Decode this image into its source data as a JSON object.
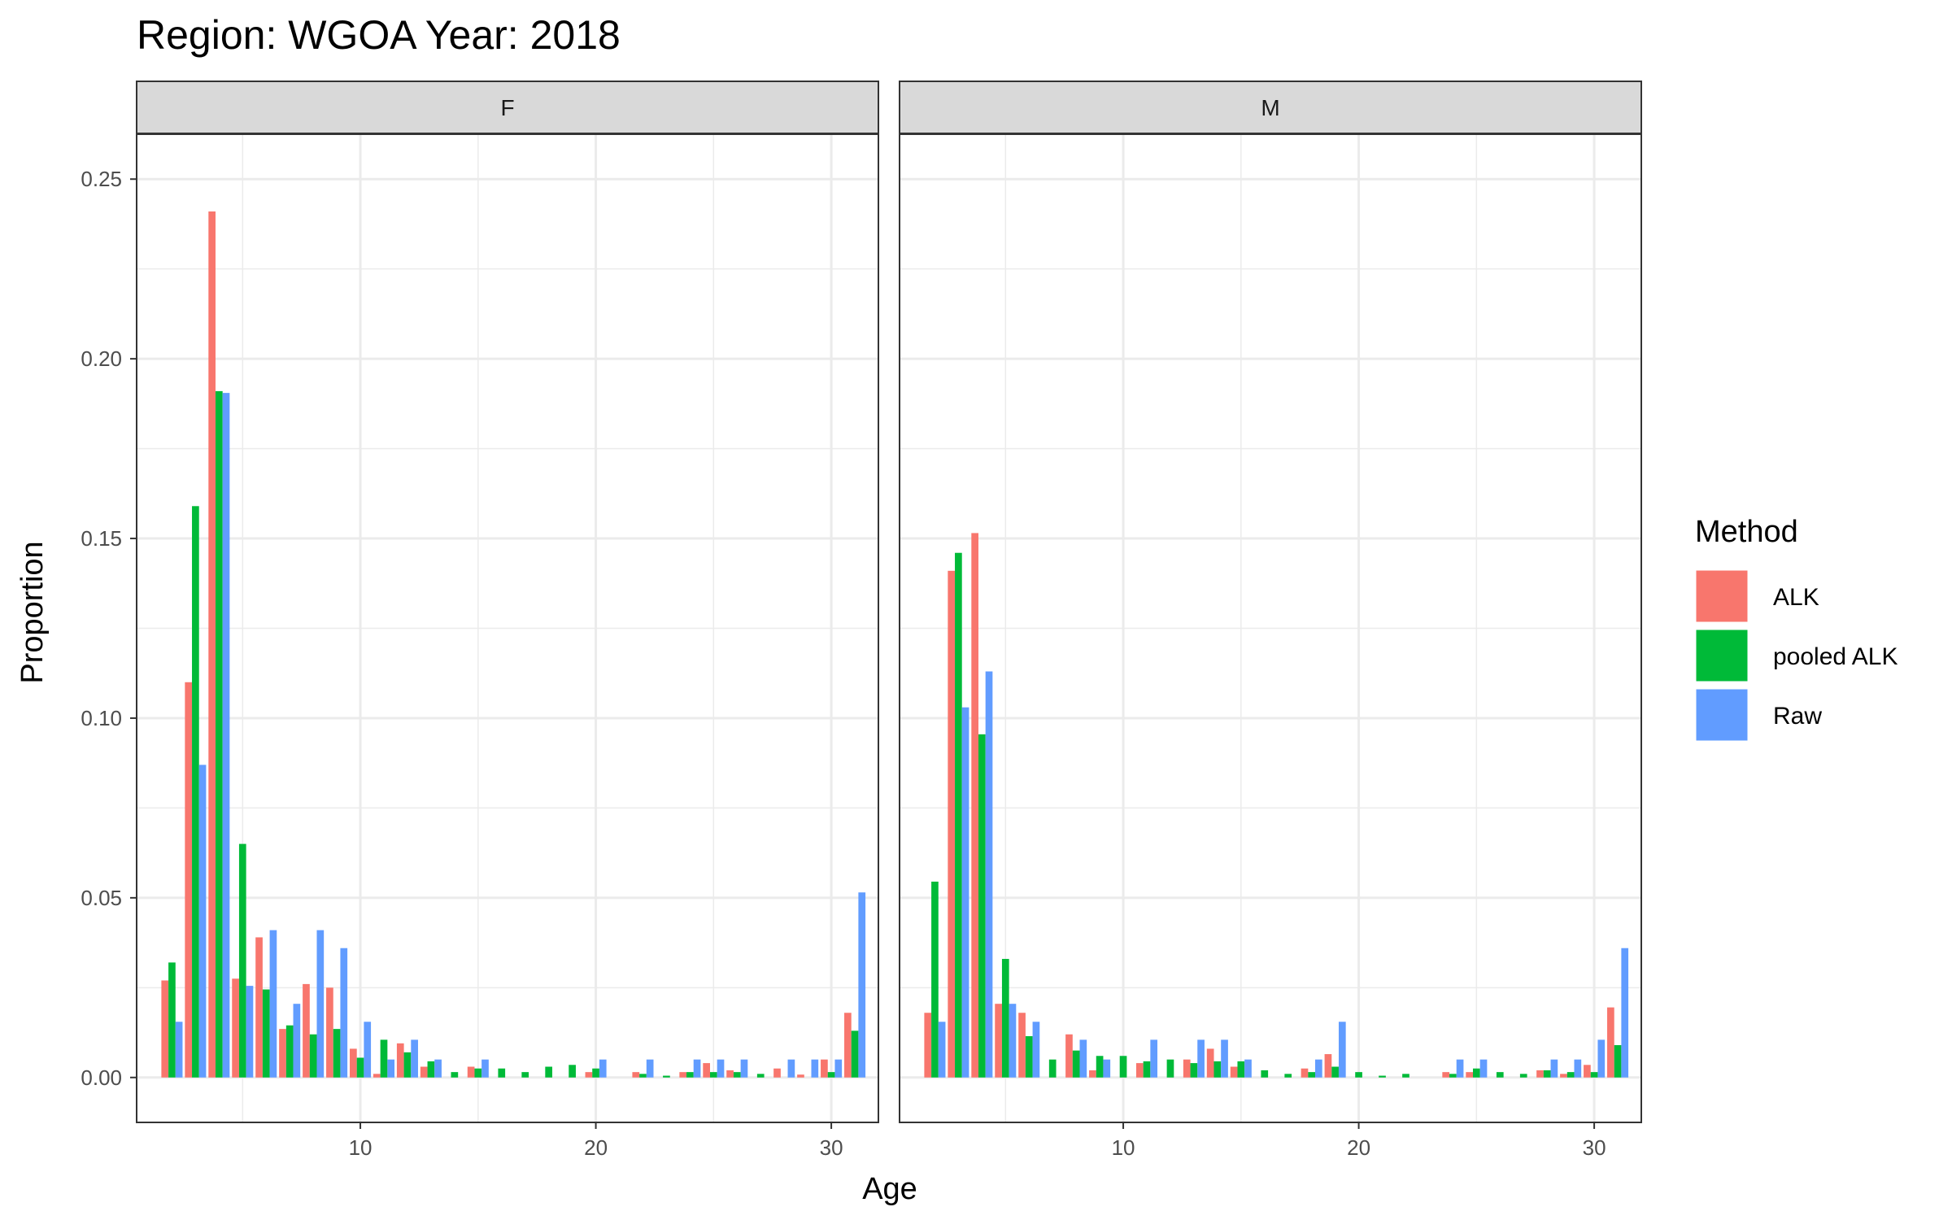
{
  "chart_data": {
    "type": "bar",
    "title": "Region: WGOA Year: 2018",
    "xlabel": "Age",
    "ylabel": "Proportion",
    "xlim": [
      0.5,
      32
    ],
    "ylim": [
      -0.0125,
      0.2625
    ],
    "x_ticks": [
      10,
      20,
      30
    ],
    "y_ticks": [
      0,
      0.05,
      0.1,
      0.15,
      0.2,
      0.25
    ],
    "y_tick_labels": [
      "0.00",
      "0.05",
      "0.10",
      "0.15",
      "0.20",
      "0.25"
    ],
    "grid": true,
    "legend": {
      "title": "Method",
      "position": "right",
      "entries": [
        {
          "label": "ALK",
          "color": "#F8766D"
        },
        {
          "label": "pooled ALK",
          "color": "#00BA38"
        },
        {
          "label": "Raw",
          "color": "#619CFF"
        }
      ]
    },
    "facets": [
      {
        "label": "F",
        "series": {
          "ALK": [
            [
              2,
              0.027
            ],
            [
              3,
              0.11
            ],
            [
              4,
              0.241
            ],
            [
              5,
              0.0275
            ],
            [
              6,
              0.039
            ],
            [
              7,
              0.0135
            ],
            [
              8,
              0.026
            ],
            [
              9,
              0.025
            ],
            [
              10,
              0.008
            ],
            [
              11,
              0.001
            ],
            [
              12,
              0.0095
            ],
            [
              13,
              0.003
            ],
            [
              15,
              0.003
            ],
            [
              20,
              0.0015
            ],
            [
              22,
              0.0015
            ],
            [
              24,
              0.0015
            ],
            [
              25,
              0.004
            ],
            [
              26,
              0.002
            ],
            [
              28,
              0.0025
            ],
            [
              29,
              0.0008
            ],
            [
              30,
              0.005
            ],
            [
              31,
              0.018
            ]
          ],
          "pooled ALK": [
            [
              2,
              0.032
            ],
            [
              3,
              0.159
            ],
            [
              4,
              0.191
            ],
            [
              5,
              0.065
            ],
            [
              6,
              0.0245
            ],
            [
              7,
              0.0145
            ],
            [
              8,
              0.012
            ],
            [
              9,
              0.0135
            ],
            [
              10,
              0.0055
            ],
            [
              11,
              0.0105
            ],
            [
              12,
              0.007
            ],
            [
              13,
              0.0045
            ],
            [
              14,
              0.0015
            ],
            [
              15,
              0.0025
            ],
            [
              16,
              0.0025
            ],
            [
              17,
              0.0015
            ],
            [
              18,
              0.003
            ],
            [
              19,
              0.0035
            ],
            [
              20,
              0.0025
            ],
            [
              22,
              0.001
            ],
            [
              23,
              0.0005
            ],
            [
              24,
              0.0015
            ],
            [
              25,
              0.0015
            ],
            [
              26,
              0.0015
            ],
            [
              27,
              0.001
            ],
            [
              30,
              0.0015
            ],
            [
              31,
              0.013
            ]
          ],
          "Raw": [
            [
              2,
              0.0155
            ],
            [
              3,
              0.087
            ],
            [
              4,
              0.1905
            ],
            [
              5,
              0.0255
            ],
            [
              6,
              0.041
            ],
            [
              7,
              0.0205
            ],
            [
              8,
              0.041
            ],
            [
              9,
              0.036
            ],
            [
              10,
              0.0155
            ],
            [
              11,
              0.005
            ],
            [
              12,
              0.0105
            ],
            [
              13,
              0.005
            ],
            [
              15,
              0.005
            ],
            [
              20,
              0.005
            ],
            [
              22,
              0.005
            ],
            [
              24,
              0.005
            ],
            [
              25,
              0.005
            ],
            [
              26,
              0.005
            ],
            [
              28,
              0.005
            ],
            [
              29,
              0.005
            ],
            [
              30,
              0.005
            ],
            [
              31,
              0.0515
            ]
          ]
        }
      },
      {
        "label": "M",
        "series": {
          "ALK": [
            [
              2,
              0.018
            ],
            [
              3,
              0.141
            ],
            [
              4,
              0.1515
            ],
            [
              5,
              0.0205
            ],
            [
              6,
              0.018
            ],
            [
              8,
              0.012
            ],
            [
              9,
              0.002
            ],
            [
              11,
              0.004
            ],
            [
              13,
              0.005
            ],
            [
              14,
              0.008
            ],
            [
              15,
              0.003
            ],
            [
              18,
              0.0025
            ],
            [
              19,
              0.0065
            ],
            [
              24,
              0.0015
            ],
            [
              25,
              0.0015
            ],
            [
              28,
              0.002
            ],
            [
              29,
              0.001
            ],
            [
              30,
              0.0035
            ],
            [
              31,
              0.0195
            ]
          ],
          "pooled ALK": [
            [
              2,
              0.0545
            ],
            [
              3,
              0.146
            ],
            [
              4,
              0.0955
            ],
            [
              5,
              0.033
            ],
            [
              6,
              0.0115
            ],
            [
              7,
              0.005
            ],
            [
              8,
              0.0075
            ],
            [
              9,
              0.006
            ],
            [
              10,
              0.006
            ],
            [
              11,
              0.0045
            ],
            [
              12,
              0.005
            ],
            [
              13,
              0.004
            ],
            [
              14,
              0.0045
            ],
            [
              15,
              0.0045
            ],
            [
              16,
              0.002
            ],
            [
              17,
              0.001
            ],
            [
              18,
              0.0015
            ],
            [
              19,
              0.003
            ],
            [
              20,
              0.0015
            ],
            [
              21,
              0.0005
            ],
            [
              22,
              0.001
            ],
            [
              24,
              0.001
            ],
            [
              25,
              0.0025
            ],
            [
              26,
              0.0015
            ],
            [
              27,
              0.001
            ],
            [
              28,
              0.002
            ],
            [
              29,
              0.0015
            ],
            [
              30,
              0.0015
            ],
            [
              31,
              0.009
            ]
          ],
          "Raw": [
            [
              2,
              0.0155
            ],
            [
              3,
              0.103
            ],
            [
              4,
              0.113
            ],
            [
              5,
              0.0205
            ],
            [
              6,
              0.0155
            ],
            [
              8,
              0.0105
            ],
            [
              9,
              0.005
            ],
            [
              11,
              0.0105
            ],
            [
              13,
              0.0105
            ],
            [
              14,
              0.0105
            ],
            [
              15,
              0.005
            ],
            [
              18,
              0.005
            ],
            [
              19,
              0.0155
            ],
            [
              24,
              0.005
            ],
            [
              25,
              0.005
            ],
            [
              28,
              0.005
            ],
            [
              29,
              0.005
            ],
            [
              30,
              0.0105
            ],
            [
              31,
              0.036
            ]
          ]
        }
      }
    ]
  }
}
